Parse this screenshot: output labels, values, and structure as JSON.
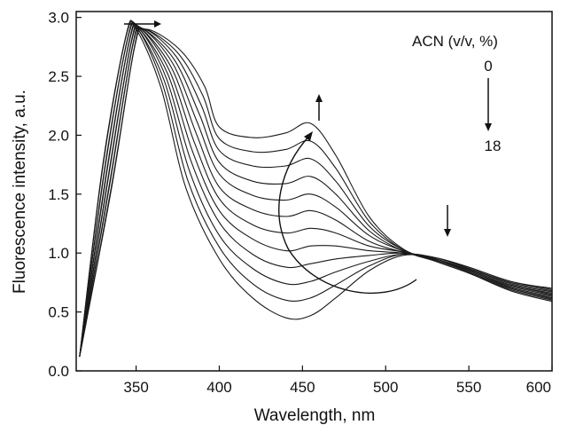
{
  "chart_data": {
    "type": "line",
    "xlabel": "Wavelength, nm",
    "ylabel": "Fluorescence intensity, a.u.",
    "xlim": [
      314,
      600
    ],
    "ylim": [
      0.0,
      3.05
    ],
    "x_ticks": [
      "350",
      "400",
      "450",
      "500",
      "550",
      "600"
    ],
    "y_ticks": [
      "0.0",
      "0.5",
      "1.0",
      "1.5",
      "2.0",
      "2.5",
      "3.0"
    ],
    "grid": false,
    "legend": {
      "title": "ACN  (v/v, %)",
      "from": "0",
      "to": "18"
    },
    "series": [
      {
        "values": [
          [
            316,
            0.12
          ],
          [
            330,
            1.75
          ],
          [
            344,
            2.85
          ],
          [
            350,
            2.9
          ],
          [
            365,
            2.4
          ],
          [
            380,
            1.55
          ],
          [
            400,
            0.95
          ],
          [
            420,
            0.62
          ],
          [
            440,
            0.45
          ],
          [
            455,
            0.47
          ],
          [
            470,
            0.62
          ],
          [
            490,
            0.85
          ],
          [
            510,
            0.98
          ],
          [
            530,
            0.96
          ],
          [
            550,
            0.88
          ],
          [
            575,
            0.76
          ],
          [
            600,
            0.7
          ]
        ]
      },
      {
        "values": [
          [
            316,
            0.12
          ],
          [
            330,
            1.73
          ],
          [
            344,
            2.84
          ],
          [
            351,
            2.9
          ],
          [
            366,
            2.43
          ],
          [
            381,
            1.62
          ],
          [
            400,
            1.05
          ],
          [
            420,
            0.74
          ],
          [
            440,
            0.6
          ],
          [
            455,
            0.62
          ],
          [
            470,
            0.73
          ],
          [
            490,
            0.89
          ],
          [
            510,
            0.99
          ],
          [
            530,
            0.96
          ],
          [
            550,
            0.88
          ],
          [
            575,
            0.76
          ],
          [
            600,
            0.69
          ]
        ]
      },
      {
        "values": [
          [
            316,
            0.12
          ],
          [
            331,
            1.71
          ],
          [
            345,
            2.83
          ],
          [
            351,
            2.9
          ],
          [
            367,
            2.46
          ],
          [
            382,
            1.7
          ],
          [
            400,
            1.15
          ],
          [
            420,
            0.87
          ],
          [
            440,
            0.74
          ],
          [
            455,
            0.76
          ],
          [
            470,
            0.84
          ],
          [
            490,
            0.93
          ],
          [
            510,
            0.99
          ],
          [
            530,
            0.96
          ],
          [
            550,
            0.87
          ],
          [
            575,
            0.75
          ],
          [
            600,
            0.68
          ]
        ]
      },
      {
        "values": [
          [
            316,
            0.12
          ],
          [
            331,
            1.69
          ],
          [
            345,
            2.82
          ],
          [
            352,
            2.9
          ],
          [
            368,
            2.49
          ],
          [
            383,
            1.78
          ],
          [
            400,
            1.26
          ],
          [
            420,
            0.99
          ],
          [
            440,
            0.88
          ],
          [
            455,
            0.91
          ],
          [
            470,
            0.95
          ],
          [
            490,
            0.98
          ],
          [
            510,
            1.0
          ],
          [
            530,
            0.96
          ],
          [
            550,
            0.87
          ],
          [
            575,
            0.74
          ],
          [
            600,
            0.67
          ]
        ]
      },
      {
        "values": [
          [
            316,
            0.12
          ],
          [
            332,
            1.67
          ],
          [
            346,
            2.81
          ],
          [
            352,
            2.9
          ],
          [
            369,
            2.52
          ],
          [
            384,
            1.86
          ],
          [
            400,
            1.36
          ],
          [
            420,
            1.12
          ],
          [
            440,
            1.02
          ],
          [
            455,
            1.06
          ],
          [
            470,
            1.06
          ],
          [
            490,
            1.02
          ],
          [
            510,
            1.0
          ],
          [
            530,
            0.95
          ],
          [
            550,
            0.86
          ],
          [
            575,
            0.73
          ],
          [
            600,
            0.66
          ]
        ]
      },
      {
        "values": [
          [
            316,
            0.12
          ],
          [
            332,
            1.65
          ],
          [
            346,
            2.8
          ],
          [
            353,
            2.9
          ],
          [
            370,
            2.55
          ],
          [
            385,
            1.94
          ],
          [
            400,
            1.46
          ],
          [
            420,
            1.24
          ],
          [
            440,
            1.17
          ],
          [
            455,
            1.21
          ],
          [
            470,
            1.17
          ],
          [
            490,
            1.06
          ],
          [
            510,
            1.01
          ],
          [
            530,
            0.95
          ],
          [
            550,
            0.86
          ],
          [
            575,
            0.73
          ],
          [
            600,
            0.65
          ]
        ]
      },
      {
        "values": [
          [
            316,
            0.12
          ],
          [
            333,
            1.63
          ],
          [
            347,
            2.79
          ],
          [
            353,
            2.9
          ],
          [
            371,
            2.58
          ],
          [
            386,
            2.02
          ],
          [
            400,
            1.56
          ],
          [
            420,
            1.37
          ],
          [
            440,
            1.31
          ],
          [
            455,
            1.36
          ],
          [
            470,
            1.28
          ],
          [
            490,
            1.1
          ],
          [
            510,
            1.01
          ],
          [
            530,
            0.95
          ],
          [
            550,
            0.85
          ],
          [
            575,
            0.72
          ],
          [
            600,
            0.64
          ]
        ]
      },
      {
        "values": [
          [
            316,
            0.12
          ],
          [
            333,
            1.61
          ],
          [
            347,
            2.78
          ],
          [
            354,
            2.9
          ],
          [
            372,
            2.61
          ],
          [
            387,
            2.1
          ],
          [
            400,
            1.67
          ],
          [
            420,
            1.49
          ],
          [
            440,
            1.45
          ],
          [
            455,
            1.5
          ],
          [
            470,
            1.39
          ],
          [
            490,
            1.15
          ],
          [
            510,
            1.02
          ],
          [
            530,
            0.94
          ],
          [
            550,
            0.85
          ],
          [
            575,
            0.71
          ],
          [
            600,
            0.63
          ]
        ]
      },
      {
        "values": [
          [
            316,
            0.12
          ],
          [
            334,
            1.59
          ],
          [
            348,
            2.77
          ],
          [
            354,
            2.9
          ],
          [
            373,
            2.64
          ],
          [
            388,
            2.18
          ],
          [
            400,
            1.77
          ],
          [
            420,
            1.61
          ],
          [
            440,
            1.59
          ],
          [
            455,
            1.65
          ],
          [
            470,
            1.5
          ],
          [
            490,
            1.19
          ],
          [
            510,
            1.02
          ],
          [
            530,
            0.94
          ],
          [
            550,
            0.84
          ],
          [
            575,
            0.7
          ],
          [
            600,
            0.62
          ]
        ]
      },
      {
        "values": [
          [
            316,
            0.12
          ],
          [
            334,
            1.57
          ],
          [
            348,
            2.76
          ],
          [
            355,
            2.9
          ],
          [
            374,
            2.67
          ],
          [
            389,
            2.26
          ],
          [
            400,
            1.87
          ],
          [
            420,
            1.74
          ],
          [
            440,
            1.74
          ],
          [
            455,
            1.8
          ],
          [
            470,
            1.61
          ],
          [
            490,
            1.23
          ],
          [
            510,
            1.03
          ],
          [
            530,
            0.94
          ],
          [
            550,
            0.84
          ],
          [
            575,
            0.7
          ],
          [
            600,
            0.61
          ]
        ]
      },
      {
        "values": [
          [
            316,
            0.12
          ],
          [
            335,
            1.55
          ],
          [
            349,
            2.75
          ],
          [
            355,
            2.9
          ],
          [
            375,
            2.7
          ],
          [
            390,
            2.34
          ],
          [
            400,
            1.97
          ],
          [
            420,
            1.86
          ],
          [
            440,
            1.88
          ],
          [
            455,
            1.95
          ],
          [
            470,
            1.72
          ],
          [
            490,
            1.27
          ],
          [
            510,
            1.03
          ],
          [
            530,
            0.93
          ],
          [
            550,
            0.83
          ],
          [
            575,
            0.69
          ],
          [
            600,
            0.6
          ]
        ]
      },
      {
        "values": [
          [
            316,
            0.12
          ],
          [
            335,
            1.53
          ],
          [
            349,
            2.74
          ],
          [
            356,
            2.9
          ],
          [
            376,
            2.73
          ],
          [
            391,
            2.42
          ],
          [
            400,
            2.07
          ],
          [
            420,
            1.98
          ],
          [
            440,
            2.02
          ],
          [
            455,
            2.1
          ],
          [
            470,
            1.83
          ],
          [
            490,
            1.31
          ],
          [
            510,
            1.04
          ],
          [
            530,
            0.93
          ],
          [
            550,
            0.83
          ],
          [
            575,
            0.68
          ],
          [
            600,
            0.59
          ]
        ]
      }
    ]
  },
  "annotations": {
    "arrow_shift_right": "→ shift at 350 nm",
    "arrow_up_460": "↑ at 460 nm",
    "arrow_down_540": "↓ at 540 nm",
    "legend_arrow": "↓ 0 to 18"
  }
}
